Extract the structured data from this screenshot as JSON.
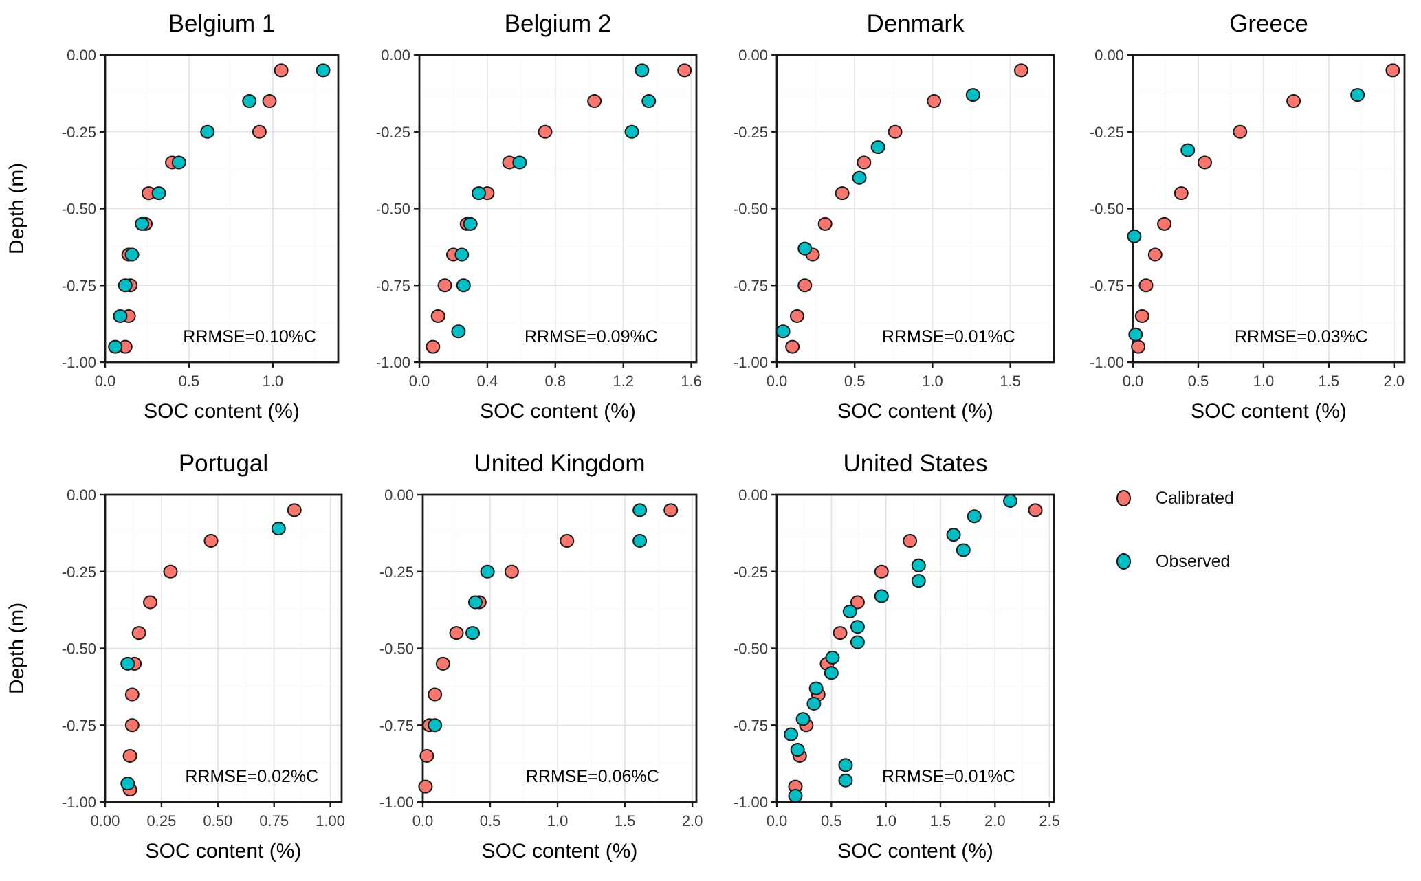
{
  "figure": {
    "xlabel": "SOC content (%)",
    "ylabel": "Depth (m)",
    "background": "#FFFFFF"
  },
  "style": {
    "point_stroke": "#1A1A1A",
    "panel_border": "#1A1A1A",
    "grid_major": "#E3E3E3",
    "grid_minor": "#F0F0F0",
    "tick_label_color": "#373C41",
    "text_color": "#000000"
  },
  "legend": {
    "items": [
      {
        "label": "Calibrated",
        "color": "#F8766D"
      },
      {
        "label": "Observed",
        "color": "#00BFC4"
      }
    ]
  },
  "chart_data": [
    {
      "type": "scatter",
      "title": "Belgium 1",
      "xlabel": "SOC content (%)",
      "ylabel": "Depth (m)",
      "annotation": "RRMSE=0.10%C",
      "xlim": [
        0,
        1.39
      ],
      "ylim": [
        -1.0,
        0.0
      ],
      "grid": true,
      "xticks": {
        "values": [
          0,
          0.5,
          1.0
        ],
        "labels": [
          "0.0",
          "0.5",
          "1.0"
        ]
      },
      "yticks": {
        "values": [
          0,
          -0.25,
          -0.5,
          -0.75,
          -1.0
        ],
        "labels": [
          "0.00",
          "-0.25",
          "-0.50",
          "-0.75",
          "-1.00"
        ]
      },
      "series": [
        {
          "name": "Calibrated",
          "color": "#F8766D",
          "points": [
            [
              1.05,
              -0.05
            ],
            [
              0.98,
              -0.15
            ],
            [
              0.92,
              -0.25
            ],
            [
              0.4,
              -0.35
            ],
            [
              0.26,
              -0.45
            ],
            [
              0.24,
              -0.55
            ],
            [
              0.14,
              -0.65
            ],
            [
              0.15,
              -0.75
            ],
            [
              0.14,
              -0.85
            ],
            [
              0.12,
              -0.95
            ]
          ]
        },
        {
          "name": "Observed",
          "color": "#00BFC4",
          "points": [
            [
              1.3,
              -0.05
            ],
            [
              0.86,
              -0.15
            ],
            [
              0.61,
              -0.25
            ],
            [
              0.44,
              -0.35
            ],
            [
              0.32,
              -0.45
            ],
            [
              0.22,
              -0.55
            ],
            [
              0.16,
              -0.65
            ],
            [
              0.12,
              -0.75
            ],
            [
              0.09,
              -0.85
            ],
            [
              0.06,
              -0.95
            ]
          ]
        }
      ]
    },
    {
      "type": "scatter",
      "title": "Belgium 2",
      "xlabel": "SOC content (%)",
      "ylabel": "",
      "annotation": "RRMSE=0.09%C",
      "xlim": [
        0,
        1.63
      ],
      "ylim": [
        -1.0,
        0.0
      ],
      "grid": true,
      "xticks": {
        "values": [
          0,
          0.4,
          0.8,
          1.2,
          1.6
        ],
        "labels": [
          "0.0",
          "0.4",
          "0.8",
          "1.2",
          "1.6"
        ]
      },
      "yticks": {
        "values": [
          0,
          -0.25,
          -0.5,
          -0.75,
          -1.0
        ],
        "labels": [
          "0.00",
          "-0.25",
          "-0.50",
          "-0.75",
          "-1.00"
        ]
      },
      "series": [
        {
          "name": "Calibrated",
          "color": "#F8766D",
          "points": [
            [
              1.56,
              -0.05
            ],
            [
              1.03,
              -0.15
            ],
            [
              0.74,
              -0.25
            ],
            [
              0.53,
              -0.35
            ],
            [
              0.4,
              -0.45
            ],
            [
              0.28,
              -0.55
            ],
            [
              0.2,
              -0.65
            ],
            [
              0.15,
              -0.75
            ],
            [
              0.11,
              -0.85
            ],
            [
              0.08,
              -0.95
            ]
          ]
        },
        {
          "name": "Observed",
          "color": "#00BFC4",
          "points": [
            [
              1.31,
              -0.05
            ],
            [
              1.35,
              -0.15
            ],
            [
              1.25,
              -0.25
            ],
            [
              0.59,
              -0.35
            ],
            [
              0.35,
              -0.45
            ],
            [
              0.3,
              -0.55
            ],
            [
              0.25,
              -0.65
            ],
            [
              0.26,
              -0.75
            ],
            [
              0.23,
              -0.9
            ]
          ]
        }
      ]
    },
    {
      "type": "scatter",
      "title": "Denmark",
      "xlabel": "SOC content (%)",
      "ylabel": "",
      "annotation": "RRMSE=0.01%C",
      "xlim": [
        0,
        1.78
      ],
      "ylim": [
        -1.0,
        0.0
      ],
      "grid": true,
      "xticks": {
        "values": [
          0,
          0.5,
          1.0,
          1.5
        ],
        "labels": [
          "0.0",
          "0.5",
          "1.0",
          "1.5"
        ]
      },
      "yticks": {
        "values": [
          0,
          -0.25,
          -0.5,
          -0.75,
          -1.0
        ],
        "labels": [
          "0.00",
          "-0.25",
          "-0.50",
          "-0.75",
          "-1.00"
        ]
      },
      "series": [
        {
          "name": "Calibrated",
          "color": "#F8766D",
          "points": [
            [
              1.57,
              -0.05
            ],
            [
              1.01,
              -0.15
            ],
            [
              0.76,
              -0.25
            ],
            [
              0.56,
              -0.35
            ],
            [
              0.42,
              -0.45
            ],
            [
              0.31,
              -0.55
            ],
            [
              0.23,
              -0.65
            ],
            [
              0.18,
              -0.75
            ],
            [
              0.13,
              -0.85
            ],
            [
              0.1,
              -0.95
            ]
          ]
        },
        {
          "name": "Observed",
          "color": "#00BFC4",
          "points": [
            [
              1.26,
              -0.13
            ],
            [
              0.65,
              -0.3
            ],
            [
              0.53,
              -0.4
            ],
            [
              0.18,
              -0.63
            ],
            [
              0.04,
              -0.9
            ]
          ]
        }
      ]
    },
    {
      "type": "scatter",
      "title": "Greece",
      "xlabel": "SOC content (%)",
      "ylabel": "",
      "annotation": "RRMSE=0.03%C",
      "xlim": [
        0,
        2.08
      ],
      "ylim": [
        -1.0,
        0.0
      ],
      "grid": true,
      "xticks": {
        "values": [
          0,
          0.5,
          1.0,
          1.5,
          2.0
        ],
        "labels": [
          "0.0",
          "0.5",
          "1.0",
          "1.5",
          "2.0"
        ]
      },
      "yticks": {
        "values": [
          0,
          -0.25,
          -0.5,
          -0.75,
          -1.0
        ],
        "labels": [
          "0.00",
          "-0.25",
          "-0.50",
          "-0.75",
          "-1.00"
        ]
      },
      "series": [
        {
          "name": "Calibrated",
          "color": "#F8766D",
          "points": [
            [
              1.99,
              -0.05
            ],
            [
              1.23,
              -0.15
            ],
            [
              0.82,
              -0.25
            ],
            [
              0.55,
              -0.35
            ],
            [
              0.37,
              -0.45
            ],
            [
              0.24,
              -0.55
            ],
            [
              0.17,
              -0.65
            ],
            [
              0.1,
              -0.75
            ],
            [
              0.07,
              -0.85
            ],
            [
              0.04,
              -0.95
            ]
          ]
        },
        {
          "name": "Observed",
          "color": "#00BFC4",
          "points": [
            [
              1.72,
              -0.13
            ],
            [
              0.42,
              -0.31
            ],
            [
              0.01,
              -0.59
            ],
            [
              0.02,
              -0.91
            ]
          ]
        }
      ]
    },
    {
      "type": "scatter",
      "title": "Portugal",
      "xlabel": "SOC content (%)",
      "ylabel": "Depth (m)",
      "annotation": "RRMSE=0.02%C",
      "xlim": [
        0,
        1.05
      ],
      "ylim": [
        -1.0,
        0.0
      ],
      "grid": true,
      "xticks": {
        "values": [
          0,
          0.25,
          0.5,
          0.75,
          1.0
        ],
        "labels": [
          "0.00",
          "0.25",
          "0.50",
          "0.75",
          "1.00"
        ]
      },
      "yticks": {
        "values": [
          0,
          -0.25,
          -0.5,
          -0.75,
          -1.0
        ],
        "labels": [
          "0.00",
          "-0.25",
          "-0.50",
          "-0.75",
          "-1.00"
        ]
      },
      "series": [
        {
          "name": "Calibrated",
          "color": "#F8766D",
          "points": [
            [
              0.84,
              -0.05
            ],
            [
              0.47,
              -0.15
            ],
            [
              0.29,
              -0.25
            ],
            [
              0.2,
              -0.35
            ],
            [
              0.15,
              -0.45
            ],
            [
              0.13,
              -0.55
            ],
            [
              0.12,
              -0.65
            ],
            [
              0.12,
              -0.75
            ],
            [
              0.11,
              -0.85
            ],
            [
              0.11,
              -0.96
            ]
          ]
        },
        {
          "name": "Observed",
          "color": "#00BFC4",
          "points": [
            [
              0.77,
              -0.11
            ],
            [
              0.1,
              -0.55
            ],
            [
              0.1,
              -0.94
            ]
          ]
        }
      ]
    },
    {
      "type": "scatter",
      "title": "United Kingdom",
      "xlabel": "SOC content (%)",
      "ylabel": "",
      "annotation": "RRMSE=0.06%C",
      "xlim": [
        0,
        2.03
      ],
      "ylim": [
        -1.0,
        0.0
      ],
      "grid": true,
      "xticks": {
        "values": [
          0,
          0.5,
          1.0,
          1.5,
          2.0
        ],
        "labels": [
          "0.0",
          "0.5",
          "1.0",
          "1.5",
          "2.0"
        ]
      },
      "yticks": {
        "values": [
          0,
          -0.25,
          -0.5,
          -0.75,
          -1.0
        ],
        "labels": [
          "0.00",
          "-0.25",
          "-0.50",
          "-0.75",
          "-1.00"
        ]
      },
      "series": [
        {
          "name": "Calibrated",
          "color": "#F8766D",
          "points": [
            [
              1.84,
              -0.05
            ],
            [
              1.07,
              -0.15
            ],
            [
              0.66,
              -0.25
            ],
            [
              0.42,
              -0.35
            ],
            [
              0.25,
              -0.45
            ],
            [
              0.15,
              -0.55
            ],
            [
              0.09,
              -0.65
            ],
            [
              0.05,
              -0.75
            ],
            [
              0.03,
              -0.85
            ],
            [
              0.02,
              -0.95
            ]
          ]
        },
        {
          "name": "Observed",
          "color": "#00BFC4",
          "points": [
            [
              1.61,
              -0.05
            ],
            [
              1.61,
              -0.15
            ],
            [
              0.48,
              -0.25
            ],
            [
              0.39,
              -0.35
            ],
            [
              0.37,
              -0.45
            ],
            [
              0.09,
              -0.75
            ]
          ]
        }
      ]
    },
    {
      "type": "scatter",
      "title": "United States",
      "xlabel": "SOC content (%)",
      "ylabel": "",
      "annotation": "RRMSE=0.01%C",
      "xlim": [
        0,
        2.54
      ],
      "ylim": [
        -1.0,
        0.0
      ],
      "grid": true,
      "xticks": {
        "values": [
          0,
          0.5,
          1.0,
          1.5,
          2.0,
          2.5
        ],
        "labels": [
          "0.0",
          "0.5",
          "1.0",
          "1.5",
          "2.0",
          "2.5"
        ]
      },
      "yticks": {
        "values": [
          0,
          -0.25,
          -0.5,
          -0.75,
          -1.0
        ],
        "labels": [
          "0.00",
          "-0.25",
          "-0.50",
          "-0.75",
          "-1.00"
        ]
      },
      "series": [
        {
          "name": "Calibrated",
          "color": "#F8766D",
          "points": [
            [
              2.37,
              -0.05
            ],
            [
              1.22,
              -0.15
            ],
            [
              0.96,
              -0.25
            ],
            [
              0.74,
              -0.35
            ],
            [
              0.58,
              -0.45
            ],
            [
              0.46,
              -0.55
            ],
            [
              0.38,
              -0.65
            ],
            [
              0.27,
              -0.75
            ],
            [
              0.21,
              -0.85
            ],
            [
              0.17,
              -0.95
            ]
          ]
        },
        {
          "name": "Observed",
          "color": "#00BFC4",
          "points": [
            [
              2.14,
              -0.02
            ],
            [
              1.81,
              -0.07
            ],
            [
              1.62,
              -0.13
            ],
            [
              1.71,
              -0.18
            ],
            [
              1.3,
              -0.23
            ],
            [
              1.3,
              -0.28
            ],
            [
              0.96,
              -0.33
            ],
            [
              0.67,
              -0.38
            ],
            [
              0.74,
              -0.43
            ],
            [
              0.74,
              -0.48
            ],
            [
              0.51,
              -0.53
            ],
            [
              0.5,
              -0.58
            ],
            [
              0.36,
              -0.63
            ],
            [
              0.34,
              -0.68
            ],
            [
              0.24,
              -0.73
            ],
            [
              0.13,
              -0.78
            ],
            [
              0.19,
              -0.83
            ],
            [
              0.63,
              -0.88
            ],
            [
              0.63,
              -0.93
            ],
            [
              0.17,
              -0.98
            ]
          ]
        }
      ]
    }
  ]
}
